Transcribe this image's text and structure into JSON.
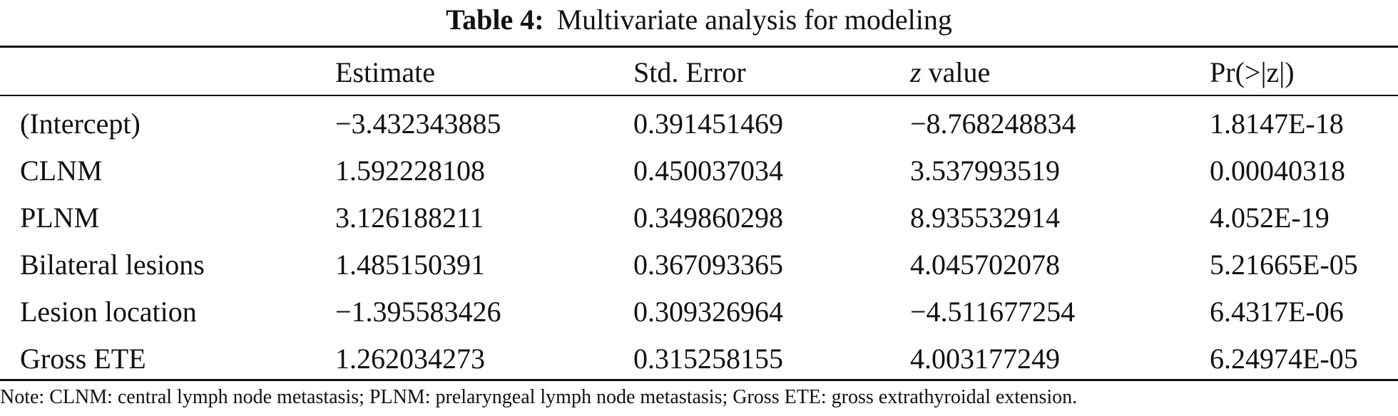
{
  "title": {
    "label": "Table 4:",
    "text": "Multivariate analysis for modeling"
  },
  "columns": {
    "estimate": "Estimate",
    "std_error": "Std. Error",
    "z_italic": "z",
    "z_rest": " value",
    "pr": "Pr(>|z|)"
  },
  "rows": [
    {
      "name": "(Intercept)",
      "estimate": "−3.432343885",
      "std_error": "0.391451469",
      "z": "−8.768248834",
      "pr": "1.8147E-18"
    },
    {
      "name": "CLNM",
      "estimate": "1.592228108",
      "std_error": "0.450037034",
      "z": "3.537993519",
      "pr": "0.00040318"
    },
    {
      "name": "PLNM",
      "estimate": "3.126188211",
      "std_error": "0.349860298",
      "z": "8.935532914",
      "pr": "4.052E-19"
    },
    {
      "name": "Bilateral lesions",
      "estimate": "1.485150391",
      "std_error": "0.367093365",
      "z": "4.045702078",
      "pr": "5.21665E-05"
    },
    {
      "name": "Lesion location",
      "estimate": "−1.395583426",
      "std_error": "0.309326964",
      "z": "−4.511677254",
      "pr": "6.4317E-06"
    },
    {
      "name": "Gross ETE",
      "estimate": "1.262034273",
      "std_error": "0.315258155",
      "z": "4.003177249",
      "pr": "6.24974E-05"
    }
  ],
  "note": "Note: CLNM: central lymph node metastasis; PLNM: prelaryngeal lymph node metastasis; Gross ETE: gross extrathyroidal extension."
}
